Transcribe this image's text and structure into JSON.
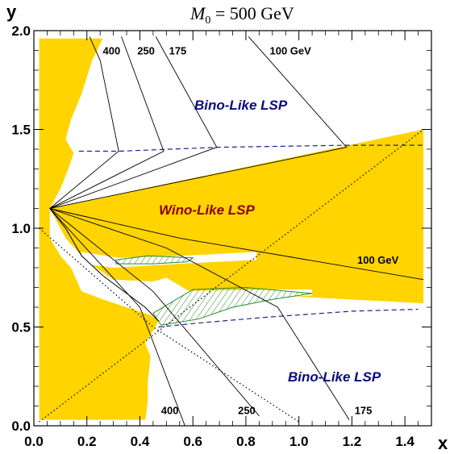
{
  "chart_data": {
    "type": "line",
    "title": "M",
    "title_sub": "0",
    "title_rest": " = 500 GeV",
    "xlabel": "x",
    "ylabel": "y",
    "xlim": [
      0.0,
      1.5
    ],
    "ylim": [
      0.0,
      2.0
    ],
    "x_ticks": [
      "0.0",
      "0.2",
      "0.4",
      "0.6",
      "0.8",
      "1.0",
      "1.2",
      "1.4"
    ],
    "y_ticks": [
      "0.0",
      "0.5",
      "1.0",
      "1.5",
      "2.0"
    ],
    "grid": false,
    "colors": {
      "allowed_region": "#ffd400",
      "hatch": "#2a8a2a",
      "dashed": "#1f1f8f",
      "bino_label": "#0a0a80",
      "wino_label": "#8b0000",
      "contour": "#000000"
    },
    "regions": {
      "bino_upper": "Bino-Like LSP",
      "wino": "Wino-Like LSP",
      "bino_lower": "Bino-Like LSP"
    },
    "yellow_regions": [
      [
        [
          0.02,
          1.96
        ],
        [
          0.26,
          1.96
        ],
        [
          0.22,
          1.85
        ],
        [
          0.18,
          1.68
        ],
        [
          0.14,
          1.55
        ],
        [
          0.12,
          1.45
        ],
        [
          0.15,
          1.38
        ],
        [
          0.13,
          1.3
        ],
        [
          0.1,
          1.2
        ],
        [
          0.06,
          1.1
        ],
        [
          0.02,
          1.02
        ]
      ],
      [
        [
          0.06,
          1.1
        ],
        [
          1.47,
          1.5
        ],
        [
          1.47,
          0.62
        ],
        [
          0.9,
          0.66
        ],
        [
          0.6,
          0.67
        ],
        [
          0.5,
          0.75
        ],
        [
          0.45,
          0.73
        ],
        [
          0.3,
          0.74
        ],
        [
          0.2,
          0.83
        ],
        [
          0.12,
          0.95
        ]
      ],
      [
        [
          0.02,
          1.02
        ],
        [
          0.06,
          1.1
        ],
        [
          0.06,
          0.95
        ],
        [
          0.1,
          0.86
        ],
        [
          0.14,
          0.8
        ],
        [
          0.18,
          0.68
        ],
        [
          0.26,
          0.64
        ],
        [
          0.35,
          0.6
        ],
        [
          0.44,
          0.56
        ],
        [
          0.47,
          0.53
        ],
        [
          0.45,
          0.48
        ],
        [
          0.42,
          0.42
        ],
        [
          0.44,
          0.35
        ],
        [
          0.43,
          0.22
        ],
        [
          0.43,
          0.12
        ],
        [
          0.42,
          0.03
        ],
        [
          0.25,
          0.03
        ],
        [
          0.02,
          0.03
        ]
      ]
    ],
    "white_notches": [
      [
        [
          0.18,
          0.88
        ],
        [
          0.32,
          0.85
        ],
        [
          0.55,
          0.86
        ],
        [
          0.84,
          0.88
        ],
        [
          0.84,
          0.84
        ],
        [
          0.55,
          0.82
        ],
        [
          0.3,
          0.8
        ],
        [
          0.18,
          0.82
        ]
      ],
      [
        [
          0.46,
          0.68
        ],
        [
          0.92,
          0.69
        ],
        [
          1.05,
          0.69
        ],
        [
          1.05,
          0.66
        ],
        [
          0.6,
          0.62
        ],
        [
          0.46,
          0.62
        ]
      ]
    ],
    "hatched_regions": [
      [
        [
          0.31,
          0.84
        ],
        [
          0.43,
          0.86
        ],
        [
          0.6,
          0.85
        ],
        [
          0.58,
          0.83
        ],
        [
          0.45,
          0.82
        ],
        [
          0.31,
          0.82
        ]
      ],
      [
        [
          0.45,
          0.57
        ],
        [
          0.6,
          0.69
        ],
        [
          0.8,
          0.7
        ],
        [
          1.05,
          0.67
        ],
        [
          0.9,
          0.64
        ],
        [
          0.75,
          0.6
        ],
        [
          0.62,
          0.54
        ],
        [
          0.48,
          0.51
        ]
      ]
    ],
    "dashed_lines": [
      [
        [
          0.17,
          1.39
        ],
        [
          0.32,
          1.39
        ],
        [
          0.7,
          1.41
        ],
        [
          1.18,
          1.42
        ],
        [
          1.47,
          1.42
        ]
      ],
      [
        [
          0.47,
          0.5
        ],
        [
          0.62,
          0.52
        ],
        [
          0.88,
          0.55
        ],
        [
          1.2,
          0.58
        ],
        [
          1.45,
          0.59
        ]
      ]
    ],
    "boundary_line": [
      [
        0.06,
        1.1
      ],
      [
        0.12,
        1.0
      ],
      [
        0.18,
        0.86
      ],
      [
        0.26,
        0.76
      ],
      [
        0.34,
        0.68
      ],
      [
        0.42,
        0.6
      ],
      [
        0.47,
        0.53
      ]
    ],
    "dotted_lines": [
      [
        [
          0.02,
          0.02
        ],
        [
          1.47,
          1.5
        ]
      ],
      [
        [
          0.02,
          1.0
        ],
        [
          0.45,
          0.5
        ],
        [
          1.0,
          0.02
        ]
      ]
    ],
    "contour_lines": [
      {
        "label": "400",
        "points": [
          [
            0.06,
            1.1
          ],
          [
            0.32,
            1.39
          ],
          [
            0.25,
            1.85
          ],
          [
            0.21,
            1.97
          ]
        ]
      },
      {
        "label": "250",
        "points": [
          [
            0.06,
            1.1
          ],
          [
            0.49,
            1.39
          ],
          [
            0.33,
            1.97
          ]
        ]
      },
      {
        "label": "175",
        "points": [
          [
            0.06,
            1.1
          ],
          [
            0.69,
            1.41
          ],
          [
            0.46,
            1.97
          ]
        ]
      },
      {
        "label": "100 GeV",
        "points": [
          [
            0.06,
            1.1
          ],
          [
            1.18,
            1.41
          ],
          [
            0.81,
            1.97
          ]
        ]
      },
      {
        "label": "100 GeV",
        "points": [
          [
            0.06,
            1.1
          ],
          [
            0.55,
            0.95
          ],
          [
            1.47,
            0.74
          ]
        ]
      },
      {
        "label": "175",
        "points": [
          [
            0.06,
            1.1
          ],
          [
            0.5,
            0.9
          ],
          [
            0.92,
            0.6
          ],
          [
            1.19,
            0.03
          ]
        ]
      },
      {
        "label": "250",
        "points": [
          [
            0.06,
            1.1
          ],
          [
            0.45,
            0.68
          ],
          [
            0.85,
            0.05
          ]
        ]
      },
      {
        "label": "400",
        "points": [
          [
            0.06,
            1.1
          ],
          [
            0.4,
            0.6
          ],
          [
            0.57,
            0.0
          ]
        ]
      }
    ],
    "annotations": [
      {
        "text": "400",
        "x": 0.26,
        "y": 1.88
      },
      {
        "text": "250",
        "x": 0.39,
        "y": 1.88
      },
      {
        "text": "175",
        "x": 0.51,
        "y": 1.88
      },
      {
        "text": "100 GeV",
        "x": 0.89,
        "y": 1.88
      },
      {
        "text": "100 GeV",
        "x": 1.22,
        "y": 0.82
      },
      {
        "text": "400",
        "x": 0.48,
        "y": 0.06
      },
      {
        "text": "250",
        "x": 0.77,
        "y": 0.06
      },
      {
        "text": "175",
        "x": 1.21,
        "y": 0.06
      }
    ]
  }
}
